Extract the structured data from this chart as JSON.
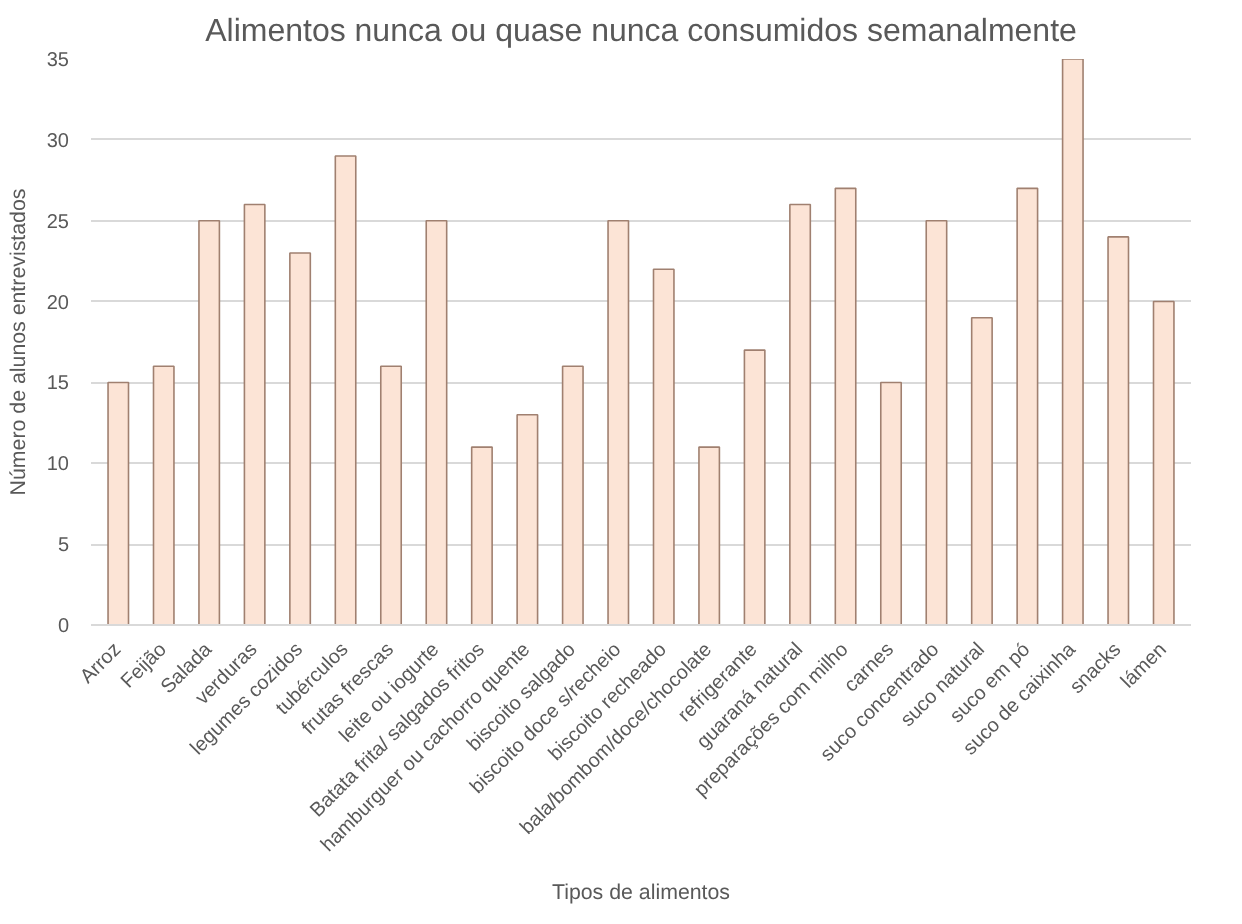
{
  "chart_data": {
    "type": "bar",
    "title": "Alimentos nunca ou quase nunca consumidos semanalmente",
    "xlabel": "Tipos de alimentos",
    "ylabel": "Número de alunos entrevistados",
    "categories": [
      "Arroz",
      "Feijão",
      "Salada",
      "verduras",
      "legumes cozidos",
      "tubérculos",
      "frutas frescas",
      "leite ou iogurte",
      "Batata frita/ salgados fritos",
      "hamburguer ou cachorro quente",
      "biscoito salgado",
      "biscoito doce s/recheio",
      "biscoito recheado",
      "bala/bombom/doce/chocolate",
      "refrigerante",
      "guaraná natural",
      "preparações com milho",
      "carnes",
      "suco concentrado",
      "suco natural",
      "suco em pó",
      "suco de caixinha",
      "snacks",
      "lámen"
    ],
    "values": [
      15,
      16,
      25,
      26,
      23,
      29,
      16,
      25,
      11,
      13,
      16,
      25,
      22,
      11,
      17,
      26,
      27,
      15,
      25,
      19,
      27,
      35,
      24,
      20
    ],
    "color": "#fce4d6",
    "ylim": [
      0,
      35
    ],
    "yticks": [
      0,
      5,
      10,
      15,
      20,
      25,
      30,
      35
    ],
    "grid": "y"
  }
}
